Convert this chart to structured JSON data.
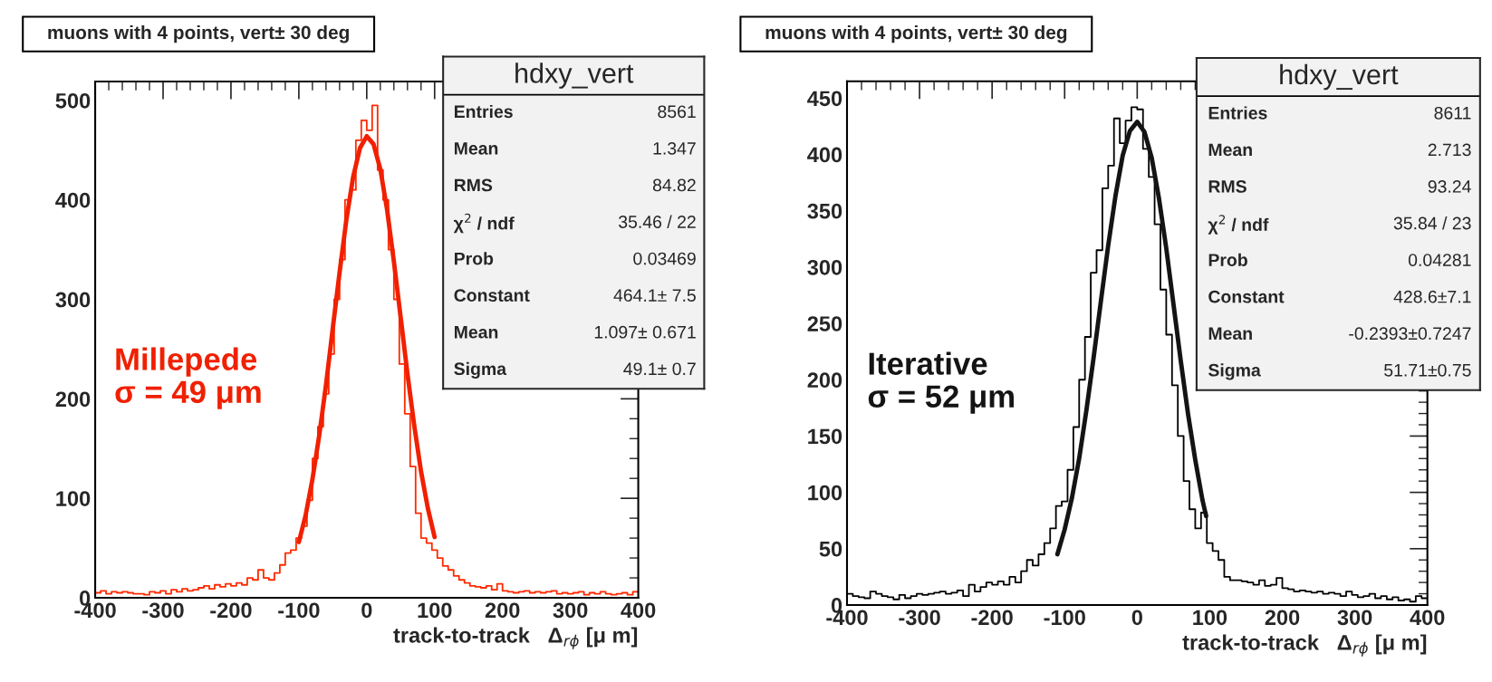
{
  "chart_data": [
    {
      "type": "histogram",
      "title": "muons with 4 points, vert± 30 deg",
      "xlabel": "track-to-track   Δ$_{rϕ}$ [μ m]",
      "bins": [
        -400,
        -392,
        -384,
        -376,
        -368,
        -360,
        -352,
        -344,
        -336,
        -328,
        -320,
        -312,
        -304,
        -296,
        -288,
        -280,
        -272,
        -264,
        -256,
        -248,
        -240,
        -232,
        -224,
        -216,
        -208,
        -200,
        -192,
        -184,
        -176,
        -168,
        -160,
        -152,
        -144,
        -136,
        -128,
        -120,
        -112,
        -104,
        -96,
        -88,
        -80,
        -72,
        -64,
        -56,
        -48,
        -40,
        -32,
        -24,
        -16,
        -8,
        0,
        8,
        16,
        24,
        32,
        40,
        48,
        56,
        64,
        72,
        80,
        88,
        96,
        104,
        112,
        120,
        128,
        136,
        144,
        152,
        160,
        168,
        176,
        184,
        192,
        200,
        208,
        216,
        224,
        232,
        240,
        248,
        256,
        264,
        272,
        280,
        288,
        296,
        304,
        312,
        320,
        328,
        336,
        344,
        352,
        360,
        368,
        376,
        384,
        392,
        400
      ],
      "series": [
        {
          "type": "histogram",
          "color": "#ff2a00",
          "values": [
            5,
            7,
            4,
            6,
            5,
            6,
            5,
            4,
            4,
            3,
            6,
            5,
            7,
            4,
            8,
            6,
            9,
            7,
            8,
            10,
            12,
            9,
            13,
            11,
            14,
            12,
            15,
            13,
            20,
            18,
            28,
            20,
            18,
            25,
            33,
            45,
            48,
            60,
            72,
            98,
            140,
            172,
            205,
            245,
            300,
            340,
            400,
            410,
            460,
            480,
            470,
            495,
            430,
            400,
            350,
            300,
            235,
            185,
            132,
            85,
            60,
            55,
            48,
            40,
            32,
            28,
            22,
            18,
            15,
            12,
            11,
            10,
            12,
            8,
            14,
            7,
            6,
            5,
            6,
            7,
            5,
            6,
            5,
            6,
            7,
            4,
            5,
            4,
            5,
            6,
            3,
            5,
            4,
            6,
            4,
            3,
            4,
            5,
            3,
            6
          ]
        },
        {
          "type": "line",
          "color": "#f02000",
          "x": [
            -100,
            -90,
            -80,
            -70,
            -60,
            -50,
            -40,
            -30,
            -20,
            -10,
            0,
            10,
            20,
            30,
            40,
            50,
            60,
            70,
            80,
            90,
            100
          ],
          "values": [
            56,
            83,
            119,
            163,
            214,
            271,
            327,
            380,
            423,
            452,
            464,
            456,
            431,
            390,
            338,
            282,
            225,
            173,
            127,
            90,
            61
          ]
        }
      ],
      "xlim": [
        -400,
        400
      ],
      "xticks": [
        -400,
        -300,
        -200,
        -100,
        0,
        100,
        200,
        300,
        400
      ],
      "ylim": [
        0,
        519
      ],
      "yticks": [
        0,
        100,
        200,
        300,
        400,
        500
      ],
      "grid": false,
      "annotations": [
        "hdxy_vert",
        "Entries",
        "8561",
        "Mean",
        "1.347",
        "RMS",
        "84.82",
        "χ$^{2}$ / ndf",
        "35.46 / 22",
        "Prob",
        "0.03469",
        "Constant",
        "464.1± 7.5",
        "Mean",
        "1.097± 0.671",
        "Sigma",
        "49.1± 0.7",
        "Millepede\nσ = 49 μm"
      ]
    },
    {
      "type": "histogram",
      "title": "muons with 4 points, vert± 30 deg",
      "xlabel": "track-to-track   Δ$_{rϕ}$ [μ m]",
      "bins": [
        -400,
        -392,
        -384,
        -376,
        -368,
        -360,
        -352,
        -344,
        -336,
        -328,
        -320,
        -312,
        -304,
        -296,
        -288,
        -280,
        -272,
        -264,
        -256,
        -248,
        -240,
        -232,
        -224,
        -216,
        -208,
        -200,
        -192,
        -184,
        -176,
        -168,
        -160,
        -152,
        -144,
        -136,
        -128,
        -120,
        -112,
        -104,
        -96,
        -88,
        -80,
        -72,
        -64,
        -56,
        -48,
        -40,
        -32,
        -24,
        -16,
        -8,
        0,
        8,
        16,
        24,
        32,
        40,
        48,
        56,
        64,
        72,
        80,
        88,
        96,
        104,
        112,
        120,
        128,
        136,
        144,
        152,
        160,
        168,
        176,
        184,
        192,
        200,
        208,
        216,
        224,
        232,
        240,
        248,
        256,
        264,
        272,
        280,
        288,
        296,
        304,
        312,
        320,
        328,
        336,
        344,
        352,
        360,
        368,
        376,
        384,
        392,
        400
      ],
      "series": [
        {
          "type": "histogram",
          "color": "#000000",
          "values": [
            10,
            8,
            7,
            6,
            12,
            10,
            8,
            7,
            5,
            9,
            6,
            8,
            10,
            9,
            10,
            11,
            12,
            10,
            11,
            13,
            8,
            18,
            12,
            16,
            20,
            18,
            21,
            18,
            25,
            20,
            30,
            40,
            35,
            45,
            55,
            68,
            88,
            92,
            120,
            158,
            200,
            238,
            295,
            315,
            370,
            390,
            432,
            410,
            430,
            442,
            440,
            405,
            380,
            338,
            280,
            240,
            195,
            150,
            110,
            85,
            68,
            82,
            55,
            48,
            40,
            25,
            22,
            22,
            21,
            20,
            18,
            22,
            17,
            18,
            24,
            15,
            14,
            12,
            13,
            12,
            11,
            12,
            10,
            11,
            10,
            8,
            12,
            9,
            7,
            8,
            10,
            6,
            8,
            5,
            7,
            4,
            5,
            3,
            8,
            6
          ]
        },
        {
          "type": "line",
          "color": "#141414",
          "x": [
            -110,
            -100,
            -90,
            -80,
            -70,
            -60,
            -50,
            -40,
            -30,
            -20,
            -10,
            0,
            10,
            20,
            30,
            40,
            50,
            60,
            70,
            80,
            90,
            95
          ],
          "values": [
            45,
            67,
            95,
            130,
            173,
            220,
            270,
            319,
            363,
            399,
            421,
            429,
            420,
            397,
            361,
            317,
            267,
            217,
            170,
            129,
            93,
            79
          ]
        }
      ],
      "xlim": [
        -400,
        400
      ],
      "xticks": [
        -400,
        -300,
        -200,
        -100,
        0,
        100,
        200,
        300,
        400
      ],
      "ylim": [
        0,
        465
      ],
      "yticks": [
        0,
        50,
        100,
        150,
        200,
        250,
        300,
        350,
        400,
        450
      ],
      "grid": false,
      "annotations": [
        "hdxy_vert",
        "Entries",
        "8611",
        "Mean",
        "2.713",
        "RMS",
        "93.24",
        "χ$^{2}$ / ndf",
        "35.84 / 23",
        "Prob",
        "0.04281",
        "Constant",
        "428.6±7.1",
        "Mean",
        "-0.2393±0.7247",
        "Sigma",
        "51.71±0.75",
        "Iterative\nσ = 52 μm"
      ]
    }
  ]
}
